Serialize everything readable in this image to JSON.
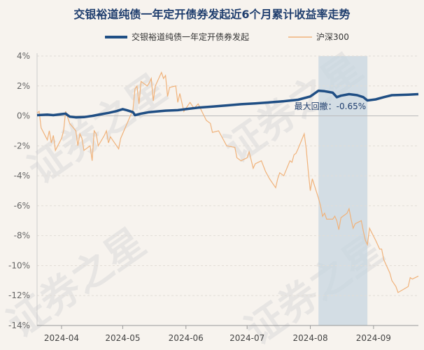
{
  "chart_data": {
    "type": "line",
    "title": "交银裕道纯债一年定开债券发起近6个月累计收益率走势",
    "watermark": "证券之星",
    "colors": {
      "fund": "#1f4e84",
      "index": "#f0b27a",
      "shade": "#c7d5e0"
    },
    "legend": {
      "placement": "top-center"
    },
    "ylim": [
      -14,
      4
    ],
    "y_ticks": [
      "4%",
      "2%",
      "0%",
      "-2%",
      "-4%",
      "-6%",
      "-8%",
      "-10%",
      "-12%",
      "-14%"
    ],
    "x_ticks": [
      "2024-04",
      "2024-05",
      "2024-06",
      "2024-07",
      "2024-08",
      "2024-09"
    ],
    "x_tick_dates": [
      "2024-04-01",
      "2024-05-01",
      "2024-06-01",
      "2024-07-01",
      "2024-08-01",
      "2024-09-01"
    ],
    "x_range": [
      "2024-03-20",
      "2024-09-23"
    ],
    "drawdown": {
      "start": "2024-08-05",
      "end": "2024-08-29",
      "label": "最大回撤：-0.65%",
      "value": -0.65
    },
    "series": [
      {
        "name": "交银裕道纯债一年定开债券发起",
        "points": [
          [
            "2024-03-20",
            0.05
          ],
          [
            "2024-03-25",
            0.08
          ],
          [
            "2024-03-28",
            0.05
          ],
          [
            "2024-04-01",
            0.12
          ],
          [
            "2024-04-03",
            0.15
          ],
          [
            "2024-04-05",
            -0.05
          ],
          [
            "2024-04-08",
            -0.1
          ],
          [
            "2024-04-12",
            -0.08
          ],
          [
            "2024-04-16",
            0.0
          ],
          [
            "2024-04-20",
            0.1
          ],
          [
            "2024-04-24",
            0.2
          ],
          [
            "2024-04-28",
            0.32
          ],
          [
            "2024-05-01",
            0.45
          ],
          [
            "2024-05-03",
            0.38
          ],
          [
            "2024-05-06",
            0.25
          ],
          [
            "2024-05-07",
            0.05
          ],
          [
            "2024-05-10",
            0.15
          ],
          [
            "2024-05-14",
            0.25
          ],
          [
            "2024-05-18",
            0.3
          ],
          [
            "2024-05-22",
            0.35
          ],
          [
            "2024-05-28",
            0.38
          ],
          [
            "2024-06-01",
            0.45
          ],
          [
            "2024-06-07",
            0.55
          ],
          [
            "2024-06-14",
            0.62
          ],
          [
            "2024-06-21",
            0.7
          ],
          [
            "2024-06-28",
            0.78
          ],
          [
            "2024-07-05",
            0.83
          ],
          [
            "2024-07-12",
            0.9
          ],
          [
            "2024-07-19",
            0.98
          ],
          [
            "2024-07-26",
            1.08
          ],
          [
            "2024-08-01",
            1.3
          ],
          [
            "2024-08-05",
            1.68
          ],
          [
            "2024-08-08",
            1.65
          ],
          [
            "2024-08-12",
            1.55
          ],
          [
            "2024-08-14",
            1.25
          ],
          [
            "2024-08-16",
            1.35
          ],
          [
            "2024-08-20",
            1.45
          ],
          [
            "2024-08-24",
            1.38
          ],
          [
            "2024-08-27",
            1.25
          ],
          [
            "2024-08-29",
            1.03
          ],
          [
            "2024-09-02",
            1.1
          ],
          [
            "2024-09-06",
            1.25
          ],
          [
            "2024-09-10",
            1.38
          ],
          [
            "2024-09-14",
            1.4
          ],
          [
            "2024-09-18",
            1.42
          ],
          [
            "2024-09-23",
            1.45
          ]
        ]
      },
      {
        "name": "沪深300",
        "points": [
          [
            "2024-03-20",
            0.2
          ],
          [
            "2024-03-21",
            0.3
          ],
          [
            "2024-03-22",
            -0.8
          ],
          [
            "2024-03-25",
            -1.6
          ],
          [
            "2024-03-26",
            -1.0
          ],
          [
            "2024-03-27",
            -1.8
          ],
          [
            "2024-03-28",
            -1.3
          ],
          [
            "2024-03-29",
            -2.3
          ],
          [
            "2024-04-01",
            -1.5
          ],
          [
            "2024-04-02",
            -1.0
          ],
          [
            "2024-04-03",
            0.3
          ],
          [
            "2024-04-05",
            -0.5
          ],
          [
            "2024-04-08",
            -1.0
          ],
          [
            "2024-04-09",
            -2.0
          ],
          [
            "2024-04-10",
            -1.2
          ],
          [
            "2024-04-11",
            -1.5
          ],
          [
            "2024-04-12",
            -2.3
          ],
          [
            "2024-04-15",
            -2.0
          ],
          [
            "2024-04-16",
            -3.0
          ],
          [
            "2024-04-17",
            -1.0
          ],
          [
            "2024-04-18",
            -1.2
          ],
          [
            "2024-04-19",
            -2.0
          ],
          [
            "2024-04-22",
            -1.3
          ],
          [
            "2024-04-23",
            -1.0
          ],
          [
            "2024-04-24",
            -1.8
          ],
          [
            "2024-04-25",
            -1.4
          ],
          [
            "2024-04-26",
            -1.6
          ],
          [
            "2024-04-29",
            -2.2
          ],
          [
            "2024-04-30",
            -1.5
          ],
          [
            "2024-05-06",
            0.4
          ],
          [
            "2024-05-07",
            1.8
          ],
          [
            "2024-05-08",
            2.0
          ],
          [
            "2024-05-09",
            0.8
          ],
          [
            "2024-05-10",
            2.3
          ],
          [
            "2024-05-13",
            2.0
          ],
          [
            "2024-05-14",
            2.2
          ],
          [
            "2024-05-15",
            2.5
          ],
          [
            "2024-05-16",
            1.0
          ],
          [
            "2024-05-17",
            2.0
          ],
          [
            "2024-05-20",
            2.9
          ],
          [
            "2024-05-21",
            2.5
          ],
          [
            "2024-05-22",
            2.7
          ],
          [
            "2024-05-23",
            1.3
          ],
          [
            "2024-05-24",
            1.9
          ],
          [
            "2024-05-27",
            2.0
          ],
          [
            "2024-05-28",
            0.9
          ],
          [
            "2024-05-29",
            1.5
          ],
          [
            "2024-05-31",
            0.3
          ],
          [
            "2024-06-03",
            0.9
          ],
          [
            "2024-06-05",
            0.5
          ],
          [
            "2024-06-07",
            0.8
          ],
          [
            "2024-06-11",
            -0.3
          ],
          [
            "2024-06-13",
            -0.5
          ],
          [
            "2024-06-14",
            -1.1
          ],
          [
            "2024-06-17",
            -1.0
          ],
          [
            "2024-06-19",
            -1.5
          ],
          [
            "2024-06-21",
            -2.0
          ],
          [
            "2024-06-25",
            -2.1
          ],
          [
            "2024-06-26",
            -2.8
          ],
          [
            "2024-06-28",
            -3.0
          ],
          [
            "2024-07-01",
            -2.8
          ],
          [
            "2024-07-02",
            -2.4
          ],
          [
            "2024-07-04",
            -3.5
          ],
          [
            "2024-07-05",
            -3.2
          ],
          [
            "2024-07-08",
            -3.0
          ],
          [
            "2024-07-10",
            -3.7
          ],
          [
            "2024-07-12",
            -4.2
          ],
          [
            "2024-07-15",
            -4.8
          ],
          [
            "2024-07-16",
            -4.2
          ],
          [
            "2024-07-17",
            -3.8
          ],
          [
            "2024-07-19",
            -4.0
          ],
          [
            "2024-07-22",
            -3.0
          ],
          [
            "2024-07-23",
            -3.1
          ],
          [
            "2024-07-24",
            -2.6
          ],
          [
            "2024-07-25",
            -2.5
          ],
          [
            "2024-07-26",
            -2.2
          ],
          [
            "2024-07-29",
            -1.2
          ],
          [
            "2024-07-30",
            -2.2
          ],
          [
            "2024-07-31",
            -3.7
          ],
          [
            "2024-08-01",
            -5.0
          ],
          [
            "2024-08-02",
            -4.2
          ],
          [
            "2024-08-05",
            -5.5
          ],
          [
            "2024-08-06",
            -6.0
          ],
          [
            "2024-08-07",
            -6.7
          ],
          [
            "2024-08-08",
            -6.5
          ],
          [
            "2024-08-09",
            -6.9
          ],
          [
            "2024-08-12",
            -6.9
          ],
          [
            "2024-08-13",
            -6.7
          ],
          [
            "2024-08-14",
            -7.0
          ],
          [
            "2024-08-15",
            -7.6
          ],
          [
            "2024-08-16",
            -6.8
          ],
          [
            "2024-08-19",
            -6.5
          ],
          [
            "2024-08-20",
            -6.2
          ],
          [
            "2024-08-21",
            -6.9
          ],
          [
            "2024-08-22",
            -7.5
          ],
          [
            "2024-08-23",
            -7.2
          ],
          [
            "2024-08-26",
            -7.0
          ],
          [
            "2024-08-27",
            -7.7
          ],
          [
            "2024-08-28",
            -8.3
          ],
          [
            "2024-08-29",
            -8.6
          ],
          [
            "2024-08-30",
            -7.5
          ],
          [
            "2024-09-02",
            -8.3
          ],
          [
            "2024-09-03",
            -8.6
          ],
          [
            "2024-09-04",
            -8.9
          ],
          [
            "2024-09-05",
            -8.9
          ],
          [
            "2024-09-06",
            -9.6
          ],
          [
            "2024-09-09",
            -10.5
          ],
          [
            "2024-09-10",
            -11.0
          ],
          [
            "2024-09-11",
            -11.2
          ],
          [
            "2024-09-12",
            -11.4
          ],
          [
            "2024-09-13",
            -11.8
          ],
          [
            "2024-09-18",
            -11.4
          ],
          [
            "2024-09-19",
            -10.8
          ],
          [
            "2024-09-20",
            -10.9
          ],
          [
            "2024-09-23",
            -10.7
          ]
        ]
      }
    ]
  }
}
